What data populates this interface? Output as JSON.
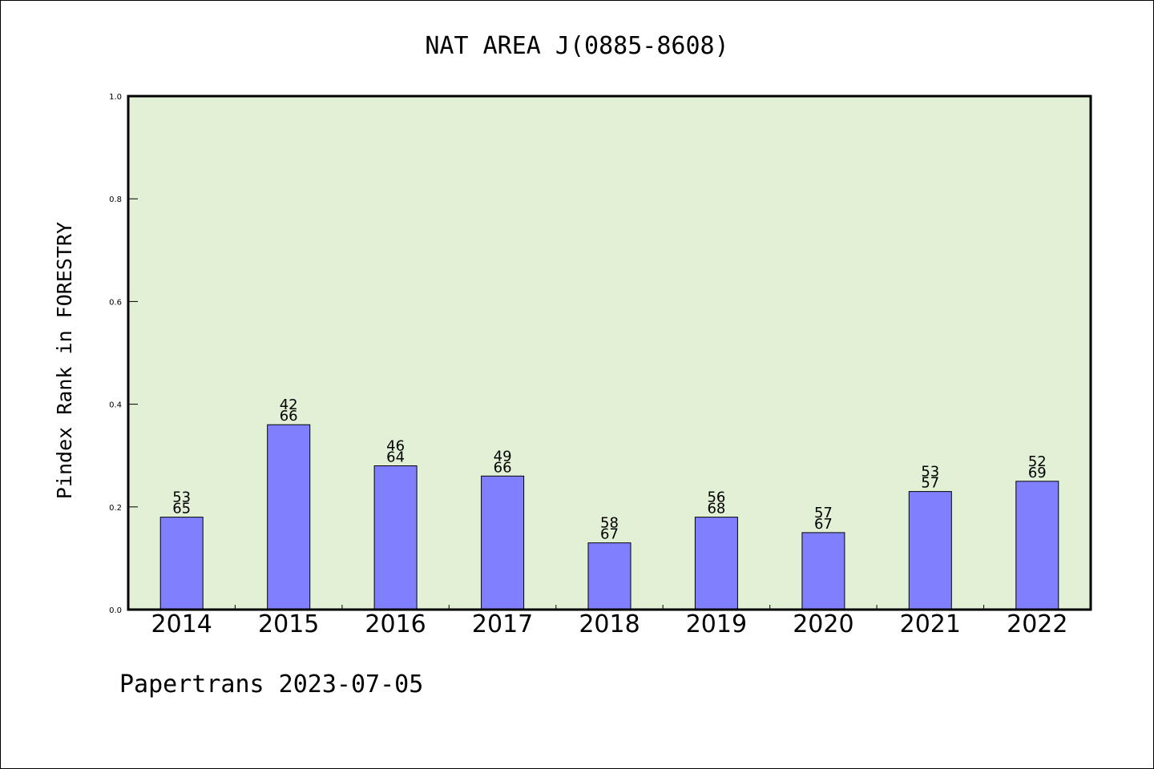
{
  "chart_data": {
    "type": "bar",
    "title": "NAT AREA J(0885-8608)",
    "xlabel": "",
    "ylabel": "Pindex Rank in FORESTRY",
    "ylim": [
      0,
      1.0
    ],
    "yticks": [
      "0.0",
      "0.2",
      "0.4",
      "0.6",
      "0.8",
      "1.0"
    ],
    "categories": [
      "2014",
      "2015",
      "2016",
      "2017",
      "2018",
      "2019",
      "2020",
      "2021",
      "2022"
    ],
    "values": [
      0.18,
      0.36,
      0.28,
      0.26,
      0.13,
      0.18,
      0.15,
      0.23,
      0.25
    ],
    "labels_top": [
      "53",
      "42",
      "46",
      "49",
      "58",
      "56",
      "57",
      "53",
      "52"
    ],
    "labels_bottom": [
      "65",
      "66",
      "64",
      "66",
      "67",
      "68",
      "67",
      "57",
      "69"
    ],
    "grid": false,
    "legend": "none",
    "colors": {
      "plot_background": "#e2f0d6",
      "bar": "#8080ff",
      "bar_edge": "#000000",
      "axis": "#000000"
    }
  },
  "footer": "Papertrans 2023-07-05"
}
